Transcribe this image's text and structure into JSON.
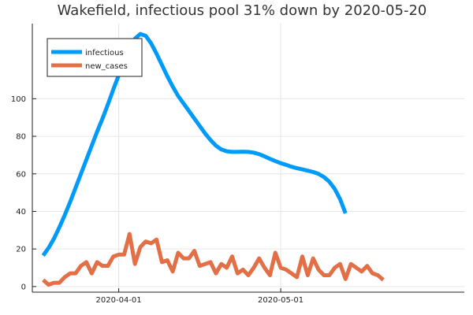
{
  "chart_data": {
    "type": "line",
    "title": "Wakefield, infectious pool 31% down by 2020-05-20",
    "xlabel": "",
    "ylabel": "",
    "x_start_date": "2020-03-18",
    "x_tick_labels": [
      "2020-04-01",
      "2020-05-01"
    ],
    "x_tick_dates": [
      "2020-04-01",
      "2020-05-01"
    ],
    "xlim": [
      "2020-03-16",
      "2020-06-04"
    ],
    "ylim": [
      -3,
      140
    ],
    "y_ticks": [
      0,
      20,
      40,
      60,
      80,
      100
    ],
    "y_tick_labels": [
      "0",
      "20",
      "40",
      "60",
      "80",
      "100"
    ],
    "grid": true,
    "legend_position": "top-left",
    "series": [
      {
        "name": "infectious",
        "color": "#009af9",
        "values": [
          16.5,
          20.5,
          25.5,
          31.5,
          38,
          45,
          52.5,
          60,
          67.5,
          75,
          82.5,
          89.5,
          97,
          105,
          112.5,
          120,
          127,
          132,
          134.5,
          133.5,
          129.5,
          124,
          118,
          112,
          106.5,
          101.5,
          97.5,
          93.5,
          89.5,
          85.5,
          81.5,
          78,
          75,
          73,
          72,
          71.7,
          71.7,
          71.8,
          71.7,
          71.3,
          70.5,
          69.3,
          68,
          66.8,
          65.7,
          64.8,
          63.8,
          63,
          62.4,
          61.7,
          61,
          60,
          58.3,
          55.8,
          52,
          46.5,
          39
        ]
      },
      {
        "name": "new_cases",
        "color": "#e26f46",
        "values": [
          3.5,
          1,
          2,
          2,
          5,
          7,
          7,
          11,
          13,
          7,
          13,
          11,
          11,
          16,
          17,
          17,
          28,
          12,
          21,
          24,
          23,
          25,
          13,
          14,
          8,
          18,
          15,
          15,
          19,
          11,
          12,
          13,
          7,
          12,
          10,
          16,
          7,
          9,
          6,
          10,
          15,
          10,
          6,
          18,
          10,
          9,
          7,
          5,
          16,
          6,
          15,
          9,
          6,
          6,
          10,
          12,
          4,
          12,
          10,
          8,
          11,
          7,
          6,
          3.5
        ]
      }
    ]
  }
}
